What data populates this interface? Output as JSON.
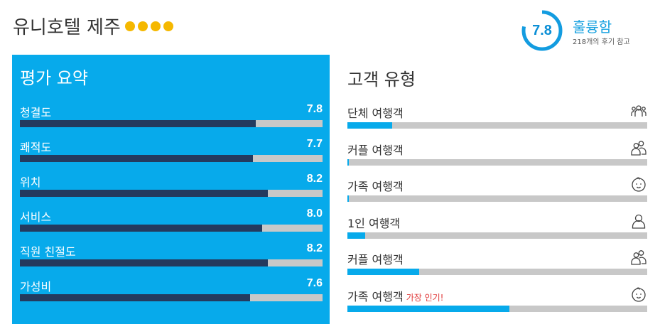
{
  "colors": {
    "panel_bg": "#07aaeb",
    "bar_dark": "#243a5e",
    "bar_track": "#c8c8c8",
    "type_fill": "#07aaeb",
    "star": "#f5b800",
    "ring": "#139ce0",
    "popular": "#e03b3b"
  },
  "header": {
    "hotel_name": "유니호텔 제주",
    "star_count": 4,
    "score": "7.8",
    "verdict": "훌륭함",
    "review_count": "218개의 후기 참고"
  },
  "summary": {
    "title": "평가 요약",
    "items": [
      {
        "label": "청결도",
        "value": "7.8",
        "score": 7.8
      },
      {
        "label": "쾌적도",
        "value": "7.7",
        "score": 7.7
      },
      {
        "label": "위치",
        "value": "8.2",
        "score": 8.2
      },
      {
        "label": "서비스",
        "value": "8.0",
        "score": 8.0
      },
      {
        "label": "직원 친절도",
        "value": "8.2",
        "score": 8.2
      },
      {
        "label": "가성비",
        "value": "7.6",
        "score": 7.6
      }
    ]
  },
  "traveler_types": {
    "title": "고객 유형",
    "items": [
      {
        "label": "단체 여행객",
        "tag": "",
        "fill": 0.15,
        "icon": "group-icon"
      },
      {
        "label": "커플 여행객",
        "tag": "",
        "fill": 0.005,
        "icon": "couple-icon"
      },
      {
        "label": "가족 여행객",
        "tag": "",
        "fill": 0.005,
        "icon": "baby-face-icon"
      },
      {
        "label": "1인 여행객",
        "tag": "",
        "fill": 0.06,
        "icon": "single-person-icon"
      },
      {
        "label": "커플 여행객",
        "tag": "",
        "fill": 0.24,
        "icon": "couple-icon"
      },
      {
        "label": "가족 여행객",
        "tag": "가장 인기!",
        "fill": 0.54,
        "icon": "baby-face-icon"
      }
    ]
  }
}
